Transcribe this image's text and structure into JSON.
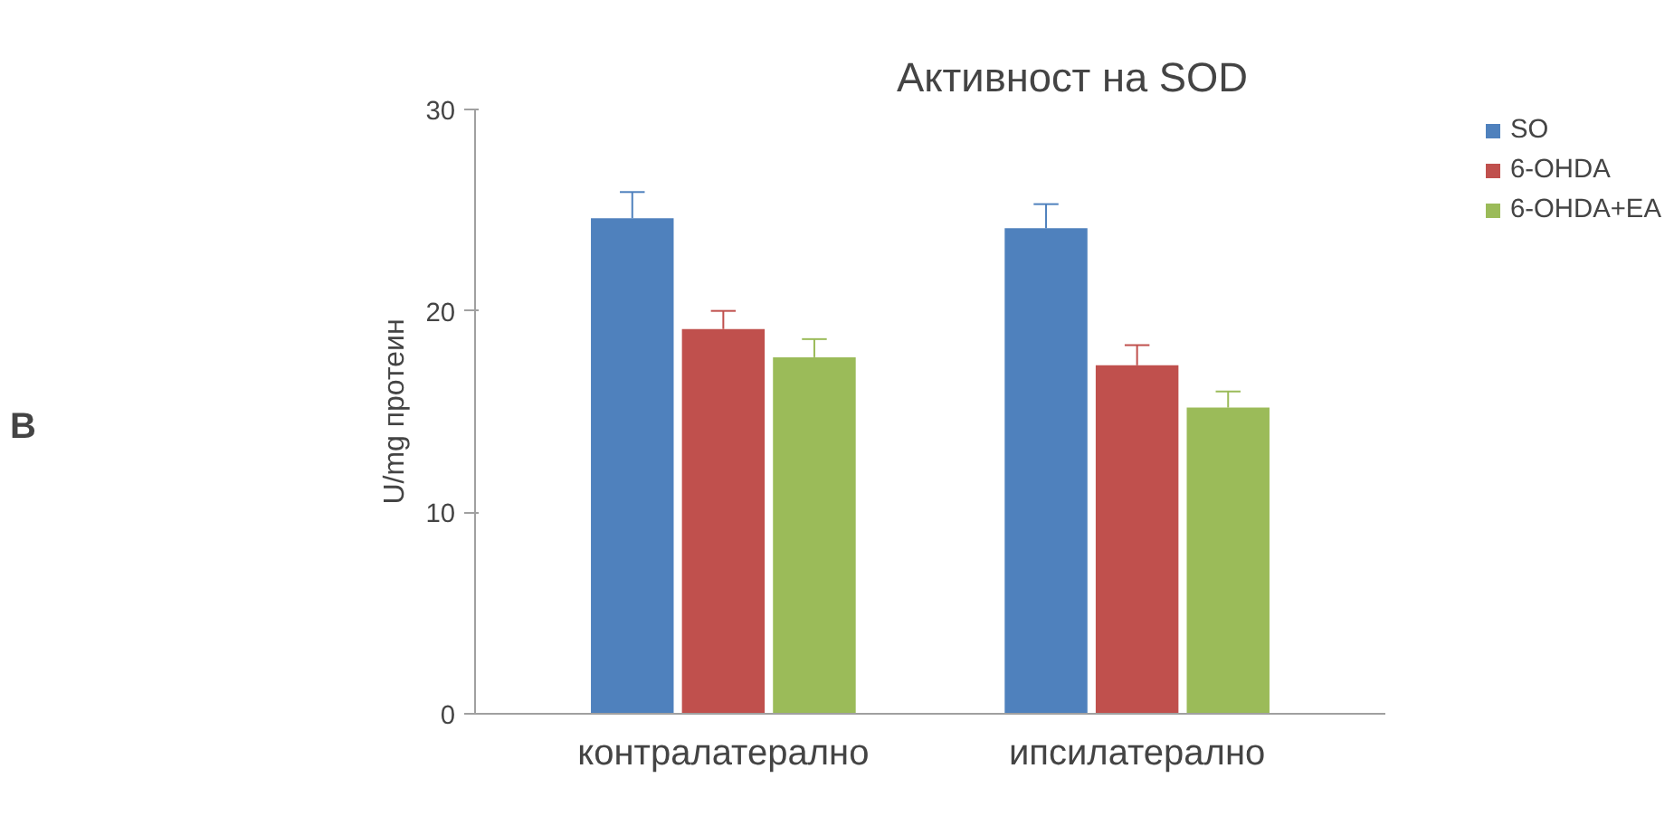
{
  "chart_data": {
    "type": "bar",
    "title": "Активност на SOD",
    "ylabel": "U/mg протеин",
    "categories": [
      "контралатерално",
      "ипсилатерално"
    ],
    "series": [
      {
        "name": "SO",
        "color": "#4f81bd",
        "values": [
          24.6,
          24.1
        ],
        "errors": [
          [
            24.6,
            25.9
          ],
          [
            24.1,
            25.3
          ]
        ]
      },
      {
        "name": "6-OHDA",
        "color": "#c0504d",
        "values": [
          19.1,
          17.3
        ],
        "errors": [
          [
            19.1,
            20.0
          ],
          [
            17.3,
            18.3
          ]
        ]
      },
      {
        "name": "6-OHDA+EA",
        "color": "#9bbb59",
        "values": [
          17.7,
          15.2
        ],
        "errors": [
          [
            17.7,
            18.6
          ],
          [
            15.2,
            16.0
          ]
        ]
      }
    ],
    "ylim": [
      0,
      30
    ],
    "yticks": [
      0,
      10,
      20,
      30
    ],
    "grid": false,
    "legend": "top right",
    "annotations": [
      "B"
    ]
  }
}
